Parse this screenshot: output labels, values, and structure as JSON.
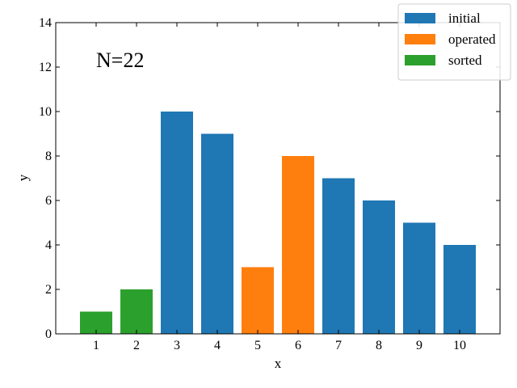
{
  "chart_data": {
    "type": "bar",
    "annotation": "N=22",
    "xlabel": "x",
    "ylabel": "y",
    "xlim": [
      0.0,
      11.0
    ],
    "ylim": [
      0,
      14
    ],
    "x_ticks": [
      1,
      2,
      3,
      4,
      5,
      6,
      7,
      8,
      9,
      10
    ],
    "y_ticks": [
      0,
      2,
      4,
      6,
      8,
      10,
      12,
      14
    ],
    "x": [
      1,
      2,
      3,
      4,
      5,
      6,
      7,
      8,
      9,
      10
    ],
    "values": [
      1,
      2,
      10,
      9,
      3,
      8,
      7,
      6,
      5,
      4
    ],
    "categories_state": [
      "sorted",
      "sorted",
      "initial",
      "initial",
      "operated",
      "operated",
      "initial",
      "initial",
      "initial",
      "initial"
    ],
    "series": [
      {
        "name": "initial",
        "color": "#1f77b4"
      },
      {
        "name": "operated",
        "color": "#ff7f0e"
      },
      {
        "name": "sorted",
        "color": "#2ca02c"
      }
    ],
    "legend_position": "top-right",
    "grid": false
  }
}
